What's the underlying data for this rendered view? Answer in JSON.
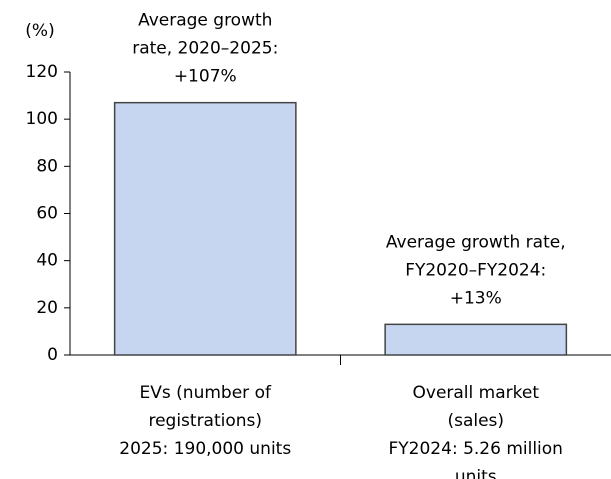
{
  "chart_data": {
    "type": "bar",
    "y_label": "(%)",
    "categories": [
      [
        "EVs (number of",
        "registrations)",
        "2025: 190,000 units"
      ],
      [
        "Overall market",
        "(sales)",
        "FY2024: 5.26 million",
        "units"
      ]
    ],
    "values": [
      107,
      13
    ],
    "annotations": [
      [
        "Average growth",
        "rate, 2020–2025:",
        "+107%"
      ],
      [
        "Average growth rate,",
        "FY2020–FY2024:",
        "+13%"
      ]
    ],
    "color": "#c6d6f0",
    "ylim": [
      0,
      120
    ],
    "yticks": [
      0,
      20,
      40,
      60,
      80,
      100,
      120
    ],
    "grid": false
  }
}
